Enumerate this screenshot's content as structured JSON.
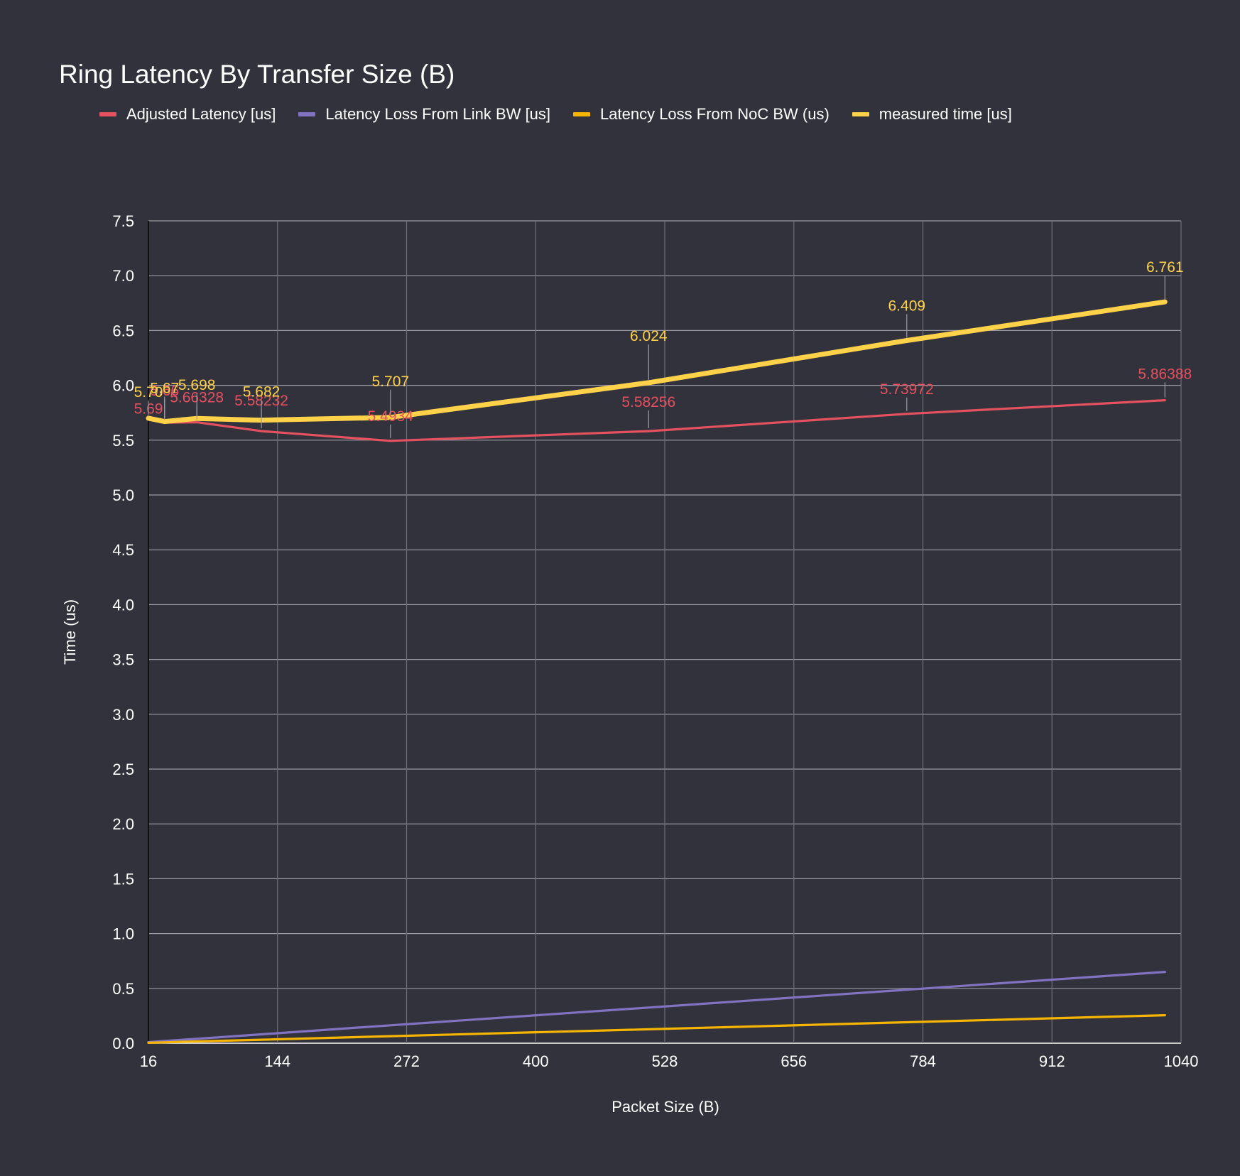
{
  "chart_data": {
    "type": "line",
    "title": "Ring Latency By Transfer Size (B)",
    "xlabel": "Packet Size (B)",
    "ylabel": "Time (us)",
    "xlim": [
      16,
      1040
    ],
    "ylim": [
      0,
      7.5
    ],
    "x_ticks": [
      "16",
      "144",
      "272",
      "400",
      "528",
      "656",
      "784",
      "912",
      "1040"
    ],
    "y_ticks": [
      "0.0",
      "0.5",
      "1.0",
      "1.5",
      "2.0",
      "2.5",
      "3.0",
      "3.5",
      "4.0",
      "4.5",
      "5.0",
      "5.5",
      "6.0",
      "6.5",
      "7.0",
      "7.5"
    ],
    "grid": true,
    "legend_position": "top-left",
    "x": [
      16,
      32,
      64,
      128,
      256,
      512,
      768,
      1024
    ],
    "series": [
      {
        "name": "Adjusted Latency [us]",
        "color": "#e5515f",
        "values": [
          5.69,
          5.66,
          5.66328,
          5.58232,
          5.4934,
          5.58256,
          5.73972,
          5.86388
        ],
        "labels": [
          "5.69",
          "5.66",
          "5.66328",
          "5.58232",
          "5.4934",
          "5.58256",
          "5.73972",
          "5.86388"
        ]
      },
      {
        "name": "Latency Loss From Link BW [us]",
        "color": "#8273c2",
        "values": [
          0.01,
          0.02,
          0.04,
          0.081,
          0.163,
          0.325,
          0.488,
          0.65
        ]
      },
      {
        "name": "Latency Loss From NoC BW (us)",
        "color": "#f5b500",
        "values": [
          0.004,
          0.008,
          0.016,
          0.032,
          0.064,
          0.127,
          0.191,
          0.255
        ]
      },
      {
        "name": "measured time [us]",
        "color": "#ffd24a",
        "values": [
          5.7,
          5.67,
          5.698,
          5.682,
          5.707,
          6.024,
          6.409,
          6.761
        ],
        "labels": [
          "5.70",
          "5.67",
          "5.698",
          "5.682",
          "5.707",
          "6.024",
          "6.409",
          "6.761"
        ]
      }
    ]
  }
}
